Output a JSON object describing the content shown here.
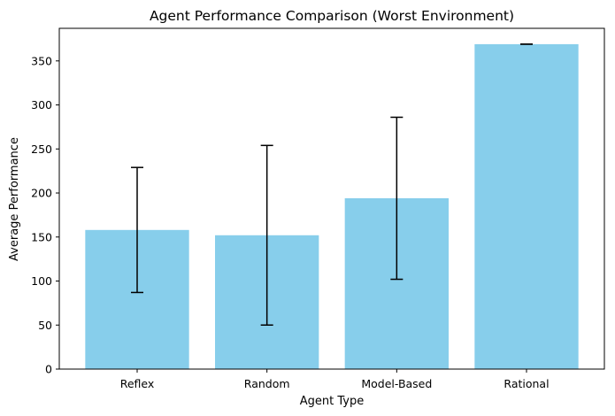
{
  "chart_data": {
    "type": "bar",
    "title": "Agent Performance Comparison (Worst Environment)",
    "xlabel": "Agent Type",
    "ylabel": "Average Performance",
    "categories": [
      "Reflex",
      "Random",
      "Model-Based",
      "Rational"
    ],
    "values": [
      158,
      152,
      194,
      369
    ],
    "error": [
      71,
      102,
      92,
      0
    ],
    "ylim": [
      0,
      387
    ],
    "yticks": [
      0,
      50,
      100,
      150,
      200,
      250,
      300,
      350
    ],
    "bar_color": "#87ceeb",
    "error_color": "#000000",
    "grid": false,
    "legend": "none"
  }
}
